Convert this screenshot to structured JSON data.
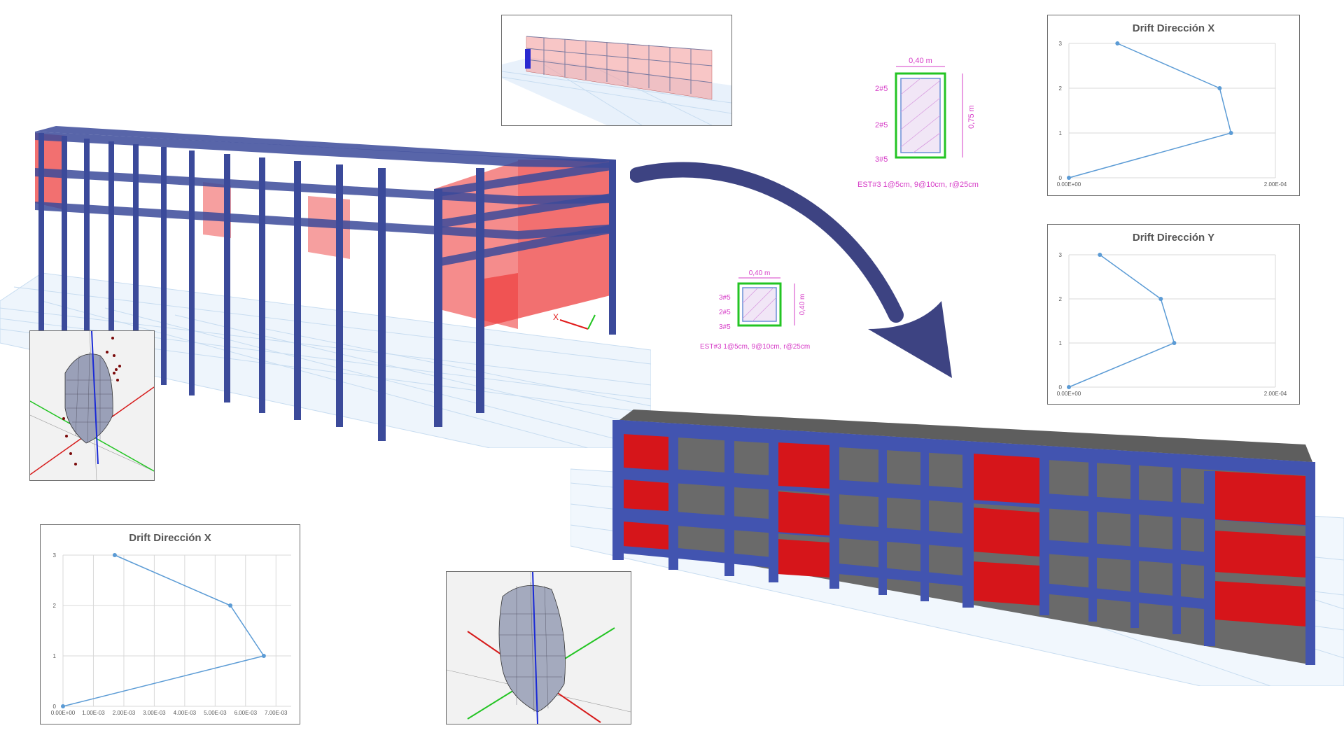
{
  "colors": {
    "frame": "#3b4a9a",
    "wall": "#e11b1b",
    "wall_transparent": "#f06060",
    "grid": "#bcd5ee",
    "chart_line": "#5b9bd5",
    "rebar_text": "#d63cc7",
    "section_outline": "#23c423",
    "arrow": "#3d4382",
    "slab": "#6a6a6a"
  },
  "section_column": {
    "width_label": "0,40 m",
    "height_label": "0,75 m",
    "rebar_rows": [
      "2#5",
      "2#5",
      "3#5"
    ],
    "stirrups": "EST#3 1@5cm, 9@10cm, r@25cm"
  },
  "section_beam": {
    "width_label": "0,40 m",
    "height_label": "0,40 m",
    "rebar_rows": [
      "3#5",
      "2#5",
      "3#5"
    ],
    "stirrups": "EST#3 1@5cm, 9@10cm, r@25cm"
  },
  "model_axis": {
    "x_label": "X"
  },
  "chart_data": [
    {
      "type": "line",
      "title": "Drift Dirección X",
      "x": [
        0.0,
        0.000157,
        0.000146,
        4.7e-05
      ],
      "y": [
        0,
        1,
        2,
        3
      ],
      "xlim": [
        0,
        0.0002
      ],
      "ylim": [
        0,
        3
      ],
      "x_ticks": [
        "0.00E+00",
        "2.00E-04"
      ],
      "y_ticks": [
        "0",
        "1",
        "2",
        "3"
      ],
      "grid": true
    },
    {
      "type": "line",
      "title": "Drift Dirección Y",
      "x": [
        0.0,
        0.000102,
        8.9e-05,
        3e-05
      ],
      "y": [
        0,
        1,
        2,
        3
      ],
      "xlim": [
        0,
        0.0002
      ],
      "ylim": [
        0,
        3
      ],
      "x_ticks": [
        "0.00E+00",
        "2.00E-04"
      ],
      "y_ticks": [
        "0",
        "1",
        "2",
        "3"
      ],
      "grid": true
    },
    {
      "type": "line",
      "title": "Drift Dirección X",
      "x": [
        0.0,
        0.0066,
        0.0055,
        0.0017
      ],
      "y": [
        0,
        1,
        2,
        3
      ],
      "xlim": [
        0,
        0.0075
      ],
      "ylim": [
        0,
        3
      ],
      "x_ticks": [
        "0.00E+00",
        "1.00E-03",
        "2.00E-03",
        "3.00E-03",
        "4.00E-03",
        "5.00E-03",
        "6.00E-03",
        "7.00E-03"
      ],
      "y_ticks": [
        "0",
        "1",
        "2",
        "3"
      ],
      "grid": true
    }
  ]
}
